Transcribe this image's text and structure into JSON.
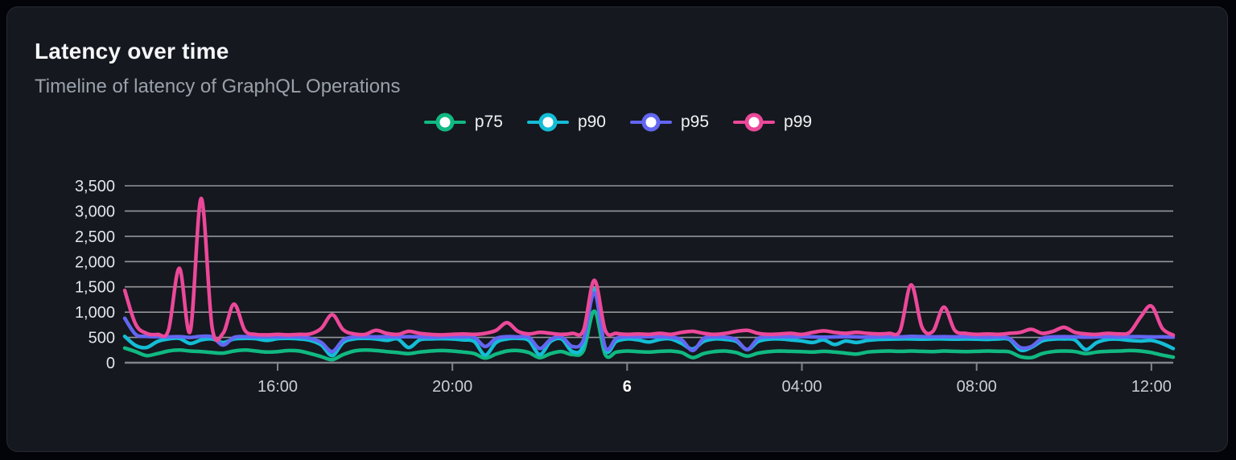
{
  "colors": {
    "p75": "#10b981",
    "p90": "#14bdd6",
    "p95": "#6366f1",
    "p99": "#ec4899",
    "grid": "#ffffff",
    "axis": "#80858d",
    "panel_background": "#15181f",
    "page_background": "#020409",
    "text_primary": "#f5f6f8",
    "text_secondary": "#9aa1ab"
  },
  "chart_data": {
    "type": "line",
    "title": "Latency over time",
    "subtitle": "Timeline of latency of GraphQL Operations",
    "ylabel": "",
    "xlabel": "",
    "ylim": [
      0,
      3500
    ],
    "y_ticks": [
      0,
      500,
      1000,
      1500,
      2000,
      2500,
      3000,
      3500
    ],
    "grid": "horizontal",
    "legend_position": "top-center",
    "x_axis": {
      "start_time": "12:30",
      "step_minutes": 15,
      "span_hours": 24,
      "ticks": [
        {
          "label": "16:00",
          "index": 14,
          "bold": false
        },
        {
          "label": "20:00",
          "index": 30,
          "bold": false
        },
        {
          "label": "6",
          "index": 46,
          "bold": true
        },
        {
          "label": "04:00",
          "index": 62,
          "bold": false
        },
        {
          "label": "08:00",
          "index": 78,
          "bold": false
        },
        {
          "label": "12:00",
          "index": 94,
          "bold": false
        }
      ]
    },
    "series": [
      {
        "name": "p75",
        "color": "#10b981",
        "values": [
          290,
          220,
          140,
          180,
          230,
          250,
          230,
          220,
          200,
          190,
          230,
          250,
          230,
          210,
          220,
          240,
          230,
          180,
          120,
          60,
          160,
          230,
          250,
          240,
          220,
          200,
          180,
          210,
          230,
          240,
          230,
          210,
          180,
          90,
          170,
          230,
          240,
          200,
          100,
          180,
          220,
          160,
          240,
          1020,
          160,
          210,
          230,
          220,
          210,
          225,
          230,
          200,
          100,
          180,
          220,
          230,
          200,
          130,
          190,
          220,
          230,
          225,
          220,
          210,
          225,
          210,
          190,
          170,
          210,
          225,
          230,
          225,
          230,
          225,
          220,
          230,
          225,
          220,
          225,
          230,
          225,
          215,
          120,
          100,
          180,
          220,
          230,
          220,
          180,
          210,
          225,
          230,
          240,
          230,
          200,
          150,
          110
        ]
      },
      {
        "name": "p90",
        "color": "#14bdd6",
        "values": [
          520,
          340,
          300,
          420,
          470,
          480,
          380,
          450,
          470,
          400,
          470,
          480,
          475,
          440,
          475,
          480,
          470,
          440,
          350,
          140,
          400,
          470,
          480,
          470,
          440,
          470,
          300,
          450,
          470,
          475,
          470,
          450,
          420,
          150,
          400,
          470,
          480,
          440,
          160,
          420,
          470,
          220,
          350,
          1460,
          260,
          420,
          470,
          450,
          410,
          460,
          470,
          380,
          270,
          420,
          470,
          460,
          420,
          260,
          420,
          465,
          470,
          450,
          430,
          400,
          450,
          360,
          430,
          400,
          440,
          460,
          465,
          470,
          470,
          465,
          470,
          470,
          465,
          470,
          465,
          460,
          470,
          460,
          250,
          300,
          430,
          465,
          470,
          450,
          260,
          400,
          460,
          465,
          440,
          430,
          440,
          380,
          280
        ]
      },
      {
        "name": "p95",
        "color": "#6366f1",
        "values": [
          880,
          560,
          520,
          515,
          510,
          515,
          500,
          520,
          510,
          350,
          500,
          515,
          510,
          515,
          510,
          515,
          510,
          480,
          400,
          220,
          450,
          510,
          515,
          510,
          515,
          510,
          515,
          510,
          505,
          510,
          515,
          510,
          505,
          320,
          480,
          515,
          510,
          505,
          280,
          460,
          510,
          320,
          450,
          1380,
          300,
          480,
          515,
          510,
          515,
          510,
          505,
          450,
          240,
          480,
          510,
          505,
          450,
          260,
          480,
          510,
          515,
          510,
          515,
          510,
          505,
          510,
          515,
          510,
          505,
          510,
          515,
          510,
          520,
          515,
          510,
          515,
          510,
          515,
          510,
          505,
          510,
          480,
          300,
          320,
          480,
          510,
          515,
          510,
          505,
          510,
          515,
          510,
          515,
          515,
          510,
          510,
          505
        ]
      },
      {
        "name": "p99",
        "color": "#ec4899",
        "values": [
          1430,
          760,
          580,
          560,
          640,
          1870,
          620,
          3250,
          700,
          580,
          1160,
          640,
          560,
          550,
          560,
          550,
          560,
          570,
          680,
          950,
          650,
          570,
          560,
          640,
          580,
          560,
          620,
          580,
          560,
          550,
          560,
          570,
          560,
          580,
          640,
          790,
          620,
          570,
          600,
          580,
          560,
          580,
          640,
          1630,
          640,
          580,
          560,
          570,
          560,
          580,
          560,
          600,
          620,
          580,
          560,
          580,
          620,
          640,
          580,
          560,
          570,
          580,
          560,
          600,
          630,
          600,
          580,
          600,
          580,
          570,
          580,
          640,
          1540,
          700,
          620,
          1100,
          640,
          580,
          560,
          570,
          560,
          580,
          600,
          660,
          580,
          620,
          700,
          600,
          570,
          560,
          580,
          570,
          600,
          900,
          1120,
          680,
          545
        ]
      }
    ]
  }
}
